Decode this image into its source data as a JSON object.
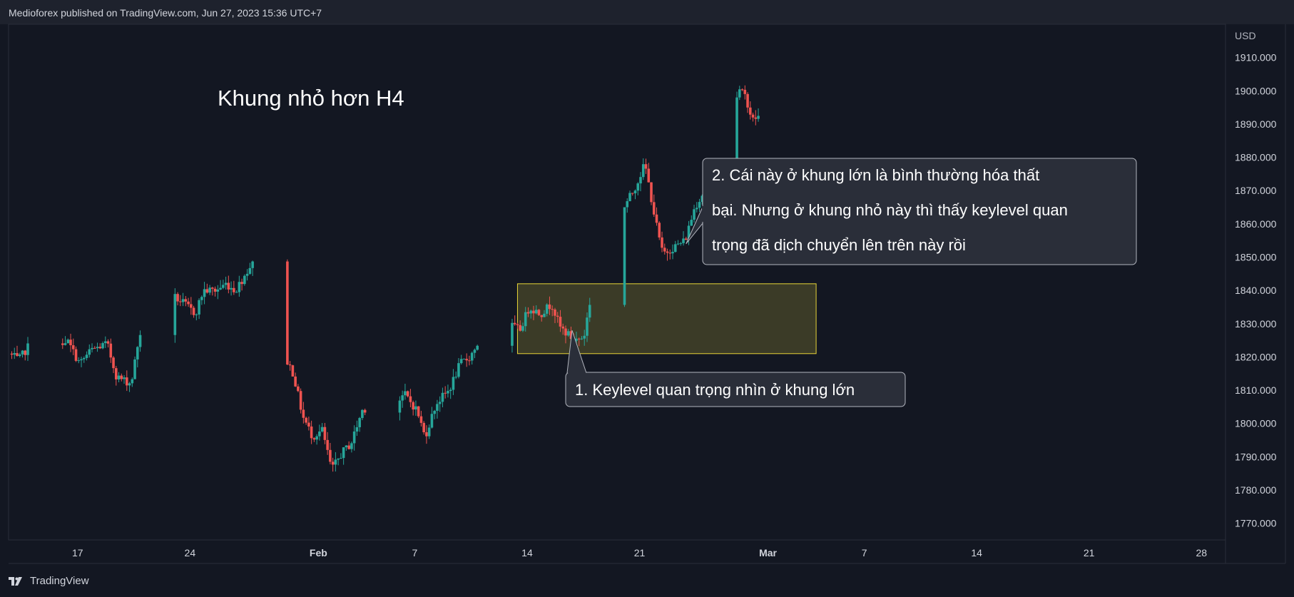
{
  "header": {
    "published_text": "Medioforex published on TradingView.com, Jun 27, 2023 15:36 UTC+7"
  },
  "footer": {
    "brand": "TradingView"
  },
  "colors": {
    "background": "#131722",
    "header_bg": "#1e222d",
    "text": "#d1d4dc",
    "up": "#26a69a",
    "down": "#ef5350",
    "zone_fill": "#3b3b27",
    "zone_border": "#e8d437",
    "callout_bg": "#2a2e39",
    "callout_border": "#b2b5be"
  },
  "chart_data": {
    "type": "candlestick",
    "title": "Khung nhỏ hơn H4",
    "currency_label": "USD",
    "y_ticks": [
      "1910.000",
      "1900.000",
      "1890.000",
      "1880.000",
      "1870.000",
      "1860.000",
      "1850.000",
      "1840.000",
      "1830.000",
      "1820.000",
      "1810.000",
      "1800.000",
      "1790.000",
      "1780.000",
      "1770.000"
    ],
    "ylim": [
      1765,
      1920
    ],
    "x_ticks": [
      {
        "label": "17",
        "day": 17
      },
      {
        "label": "24",
        "day": 24
      },
      {
        "label": "Feb",
        "day": 32
      },
      {
        "label": "7",
        "day": 38
      },
      {
        "label": "14",
        "day": 45
      },
      {
        "label": "21",
        "day": 52
      },
      {
        "label": "Mar",
        "day": 60
      },
      {
        "label": "7",
        "day": 66
      },
      {
        "label": "14",
        "day": 73
      },
      {
        "label": "21",
        "day": 80
      },
      {
        "label": "28",
        "day": 87
      }
    ],
    "xlim": [
      12.7,
      88.5
    ],
    "x_day_unit": "days from Jan 1, 2023",
    "price_path": [
      [
        12.9,
        1821
      ],
      [
        13.5,
        1819
      ],
      [
        14.5,
        1826
      ],
      [
        15.5,
        1824
      ],
      [
        16.5,
        1825
      ],
      [
        17.3,
        1818
      ],
      [
        18.0,
        1822
      ],
      [
        19.0,
        1824
      ],
      [
        19.6,
        1814
      ],
      [
        20.5,
        1812
      ],
      [
        21.0,
        1826
      ],
      [
        21.8,
        1840
      ],
      [
        22.5,
        1846
      ],
      [
        23.2,
        1838
      ],
      [
        23.8,
        1836
      ],
      [
        24.5,
        1833
      ],
      [
        25.0,
        1840
      ],
      [
        25.8,
        1840
      ],
      [
        26.4,
        1842
      ],
      [
        27.0,
        1840
      ],
      [
        27.5,
        1844
      ],
      [
        28.0,
        1848
      ],
      [
        28.6,
        1846
      ],
      [
        29.2,
        1832
      ],
      [
        29.9,
        1822
      ],
      [
        30.6,
        1815
      ],
      [
        31.2,
        1802
      ],
      [
        31.8,
        1796
      ],
      [
        32.4,
        1798
      ],
      [
        33.0,
        1786
      ],
      [
        33.6,
        1791
      ],
      [
        34.2,
        1794
      ],
      [
        34.9,
        1804
      ],
      [
        35.5,
        1806
      ],
      [
        36.2,
        1802
      ],
      [
        37.0,
        1806
      ],
      [
        37.5,
        1809
      ],
      [
        38.3,
        1804
      ],
      [
        38.8,
        1796
      ],
      [
        39.5,
        1806
      ],
      [
        40.3,
        1810
      ],
      [
        41.0,
        1818
      ],
      [
        41.6,
        1820
      ],
      [
        42.2,
        1825
      ],
      [
        43.0,
        1828
      ],
      [
        44.0,
        1830
      ],
      [
        44.7,
        1828
      ],
      [
        45.3,
        1835
      ],
      [
        46.0,
        1833
      ],
      [
        46.7,
        1836
      ],
      [
        47.2,
        1829
      ],
      [
        48.1,
        1825
      ],
      [
        48.7,
        1826
      ],
      [
        49.2,
        1840
      ],
      [
        49.5,
        1860
      ],
      [
        50.1,
        1854
      ],
      [
        50.6,
        1858
      ],
      [
        51.3,
        1866
      ],
      [
        51.8,
        1870
      ],
      [
        52.5,
        1878
      ],
      [
        53.2,
        1860
      ],
      [
        53.6,
        1851
      ],
      [
        54.3,
        1853
      ],
      [
        55.0,
        1855
      ],
      [
        55.6,
        1865
      ],
      [
        56.2,
        1870
      ],
      [
        56.8,
        1875
      ],
      [
        57.3,
        1884
      ],
      [
        57.9,
        1895
      ],
      [
        58.4,
        1900
      ],
      [
        58.8,
        1898
      ],
      [
        59.2,
        1891
      ],
      [
        59.4,
        1892
      ]
    ],
    "zone": {
      "price_top": 1842,
      "price_bottom": 1821,
      "day_start": 44.4,
      "day_end": 63.0
    },
    "annotations": [
      {
        "text": "1. Keylevel quan trọng nhìn ở khung lớn",
        "anchor_day": 47.8,
        "anchor_price": 1828
      },
      {
        "lines": [
          "2. Cái này ở khung lớn là bình thường hóa thất",
          "bại. Nhưng ở khung nhỏ này thì thấy keylevel quan",
          "trọng đã dịch chuyển lên trên này rồi"
        ],
        "anchor_day": 54.9,
        "anchor_price": 1854
      }
    ]
  }
}
